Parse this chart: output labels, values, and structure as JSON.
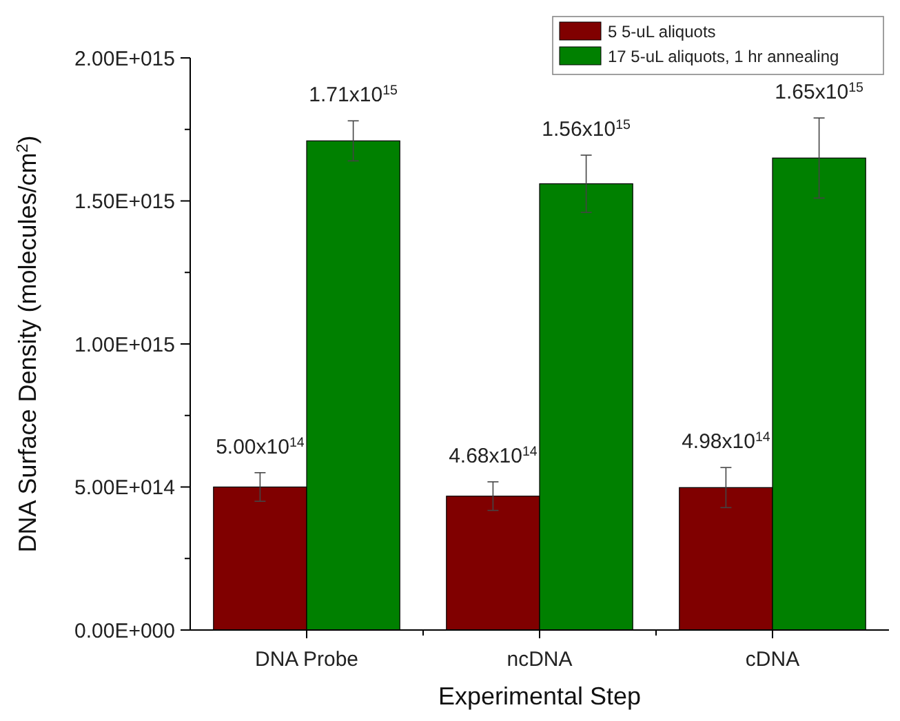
{
  "chart_data": {
    "type": "bar",
    "xlabel": "Experimental Step",
    "ylabel": "DNA Surface Density (molecules/cm$^{2}$)",
    "categories": [
      "DNA Probe",
      "ncDNA",
      "cDNA"
    ],
    "series": [
      {
        "name": "5 5-uL aliquots",
        "color": "#800000",
        "values": [
          500000000000000.0,
          468000000000000.0,
          498000000000000.0
        ],
        "errors": [
          50000000000000.0,
          50000000000000.0,
          70000000000000.0
        ],
        "value_labels": [
          "5.00x10$^{14}$",
          "4.68x10$^{14}$",
          "4.98x10$^{14}$"
        ]
      },
      {
        "name": "17 5-uL aliquots, 1 hr annealing",
        "color": "#008000",
        "values": [
          1710000000000000.0,
          1560000000000000.0,
          1650000000000000.0
        ],
        "errors": [
          70000000000000.0,
          100000000000000.0,
          140000000000000.0
        ],
        "value_labels": [
          "1.71x10$^{15}$",
          "1.56x10$^{15}$",
          "1.65x10$^{15}$"
        ]
      }
    ],
    "ylim": [
      0,
      2000000000000000.0
    ],
    "yticks": [
      {
        "value": 0,
        "label": "0.00E+000"
      },
      {
        "value": 250000000000000.0,
        "label": null
      },
      {
        "value": 500000000000000.0,
        "label": "5.00E+014"
      },
      {
        "value": 750000000000000.0,
        "label": null
      },
      {
        "value": 1000000000000000.0,
        "label": "1.00E+015"
      },
      {
        "value": 1250000000000000.0,
        "label": null
      },
      {
        "value": 1500000000000000.0,
        "label": "1.50E+015"
      },
      {
        "value": 1750000000000000.0,
        "label": null
      },
      {
        "value": 2000000000000000.0,
        "label": "2.00E+015"
      }
    ],
    "grid": false,
    "legend": "top right"
  }
}
